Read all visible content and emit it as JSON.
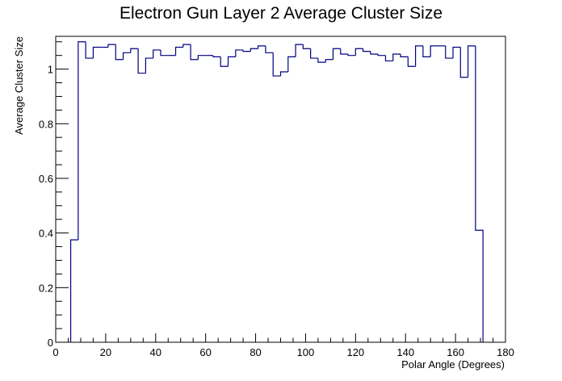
{
  "chart_data": {
    "type": "line",
    "style": "step-histogram",
    "title": "Electron Gun Layer 2 Average Cluster Size",
    "xlabel": "Polar Angle (Degrees)",
    "ylabel": "Average Cluster Size",
    "xlim": [
      0,
      180
    ],
    "ylim": [
      0,
      1.12
    ],
    "x_ticks": [
      0,
      20,
      40,
      60,
      80,
      100,
      120,
      140,
      160,
      180
    ],
    "y_ticks": [
      0,
      0.2,
      0.4,
      0.6,
      0.8,
      1
    ],
    "x_tick_labels": [
      "0",
      "20",
      "40",
      "60",
      "80",
      "100",
      "120",
      "140",
      "160",
      "180"
    ],
    "y_tick_labels": [
      "0",
      "0.2",
      "0.4",
      "0.6",
      "0.8",
      "1"
    ],
    "grid": false,
    "line_color": "#000080",
    "bin_width": 3,
    "bin_start": 6,
    "values": [
      0.375,
      1.1,
      1.04,
      1.08,
      1.08,
      1.09,
      1.035,
      1.06,
      1.075,
      0.985,
      1.04,
      1.07,
      1.05,
      1.05,
      1.08,
      1.09,
      1.035,
      1.05,
      1.05,
      1.045,
      1.01,
      1.045,
      1.07,
      1.065,
      1.075,
      1.085,
      1.06,
      0.975,
      0.99,
      1.045,
      1.09,
      1.075,
      1.04,
      1.025,
      1.035,
      1.075,
      1.055,
      1.05,
      1.075,
      1.065,
      1.055,
      1.05,
      1.03,
      1.055,
      1.045,
      1.01,
      1.085,
      1.045,
      1.085,
      1.085,
      1.04,
      1.08,
      0.97,
      1.085,
      0.41
    ]
  }
}
